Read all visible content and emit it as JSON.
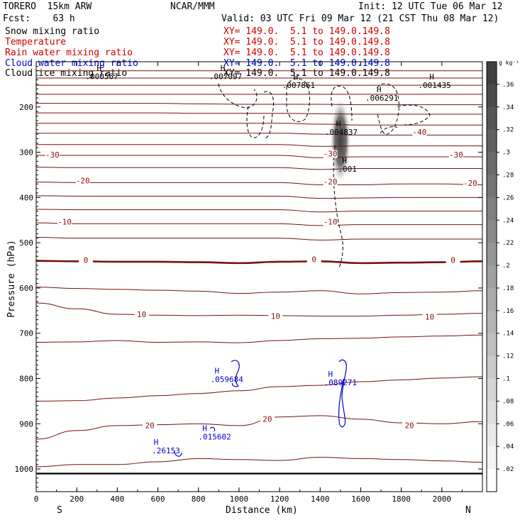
{
  "header": {
    "model": "TORERO  15km ARW",
    "center": "NCAR/MMM",
    "init": "Init: 12 UTC Tue 06 Mar 12",
    "fcst": "Fcst:    63 h",
    "valid": "Valid: 03 UTC Fri 09 Mar 12 (21 CST Thu 08 Mar 12)"
  },
  "fields": [
    {
      "name": "Snow mixing ratio",
      "xy": "XY= 149.0.  5.1 to 149.0.149.8",
      "color": "#000000"
    },
    {
      "name": "Temperature",
      "xy": "XY= 149.0.  5.1 to 149.0.149.8",
      "color": "#cc0000"
    },
    {
      "name": "Rain water mixing ratio",
      "xy": "XY= 149.0.  5.1 to 149.0.149.8",
      "color": "#cc0000"
    },
    {
      "name": "Cloud water mixing ratio",
      "xy": "XY= 149.0.  5.1 to 149.0.149.8",
      "color": "#0000cc"
    },
    {
      "name": "Cloud ice mixing ratio",
      "xy": "XY= 149.0.  5.1 to 149.0.149.8",
      "color": "#000000"
    }
  ],
  "chart_data": {
    "type": "cross-section contour",
    "xlabel": "Distance (km)",
    "ylabel": "Pressure (hPa)",
    "xlim": [
      0,
      2200
    ],
    "ylim": [
      1050,
      100
    ],
    "x_ticks": [
      0,
      200,
      400,
      600,
      800,
      1000,
      1200,
      1400,
      1600,
      1800,
      2000
    ],
    "y_ticks": [
      200,
      300,
      400,
      500,
      600,
      700,
      800,
      900,
      1000
    ],
    "x_ends": {
      "left": "S",
      "right": "N"
    },
    "colorbar": {
      "units": "g kg⁻¹",
      "ticks": [
        ".36",
        ".34",
        ".32",
        ".3",
        ".28",
        ".26",
        ".24",
        ".22",
        ".2",
        ".18",
        ".16",
        ".14",
        ".12",
        ".1",
        ".08",
        ".06",
        ".04",
        ".02"
      ]
    },
    "temperature_labels": [
      {
        "x": 80,
        "p": 310,
        "text": "-30"
      },
      {
        "x": 1450,
        "p": 308,
        "text": "-30"
      },
      {
        "x": 2070,
        "p": 310,
        "text": "-30"
      },
      {
        "x": 1890,
        "p": 260,
        "text": "-40"
      },
      {
        "x": 230,
        "p": 367,
        "text": "-20"
      },
      {
        "x": 1450,
        "p": 370,
        "text": "-20"
      },
      {
        "x": 2140,
        "p": 373,
        "text": "-20"
      },
      {
        "x": 140,
        "p": 458,
        "text": "-10"
      },
      {
        "x": 1450,
        "p": 458,
        "text": "-10"
      },
      {
        "x": 245,
        "p": 543,
        "text": "0"
      },
      {
        "x": 1370,
        "p": 541,
        "text": "0"
      },
      {
        "x": 2055,
        "p": 543,
        "text": "0"
      },
      {
        "x": 520,
        "p": 663,
        "text": "10"
      },
      {
        "x": 1180,
        "p": 667,
        "text": "10"
      },
      {
        "x": 1940,
        "p": 668,
        "text": "10"
      },
      {
        "x": 560,
        "p": 908,
        "text": "20"
      },
      {
        "x": 1140,
        "p": 894,
        "text": "20"
      },
      {
        "x": 1840,
        "p": 908,
        "text": "20"
      }
    ],
    "snow_maxima": [
      {
        "x": 310,
        "p": 135,
        "text": ".000567"
      },
      {
        "x": 920,
        "p": 135,
        "text": ".007097"
      },
      {
        "x": 1280,
        "p": 155,
        "text": ".007861"
      },
      {
        "x": 1490,
        "p": 258,
        "text": ".004837"
      },
      {
        "x": 1690,
        "p": 183,
        "text": ".006291"
      },
      {
        "x": 1950,
        "p": 155,
        "text": ".001435"
      },
      {
        "x": 1520,
        "p": 340,
        "text": ".001"
      }
    ],
    "cloud_water_maxima": [
      {
        "x": 940,
        "p": 805,
        "text": ".059684"
      },
      {
        "x": 1500,
        "p": 812,
        "text": ".089271"
      },
      {
        "x": 880,
        "p": 932,
        "text": ".015602"
      },
      {
        "x": 640,
        "p": 962,
        "text": ".26153"
      }
    ],
    "max_marker": "H"
  }
}
